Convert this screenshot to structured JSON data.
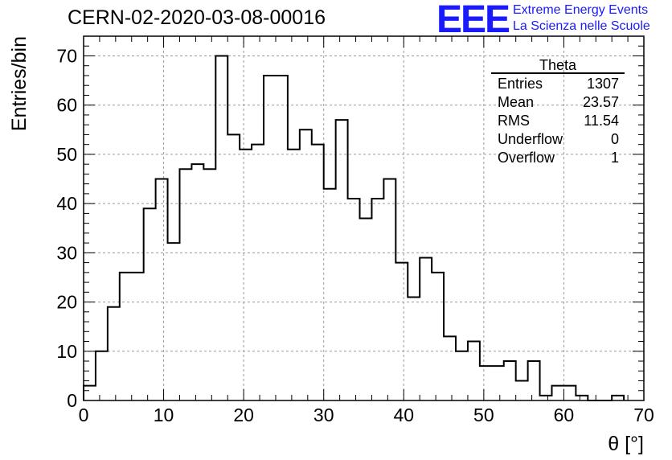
{
  "header": {
    "title": "CERN-02-2020-03-08-00016",
    "logo_mark": "EEE",
    "logo_line1": "Extreme Energy Events",
    "logo_line2": "La Scienza nelle Scuole",
    "logo_color": "#1a1aff"
  },
  "chart_data": {
    "type": "bar",
    "style": "step-histogram",
    "xlabel": "θ [°]",
    "ylabel": "Entries/bin",
    "xlim": [
      0,
      70
    ],
    "ylim": [
      0,
      74
    ],
    "xticks": [
      0,
      10,
      20,
      30,
      40,
      50,
      60,
      70
    ],
    "yticks": [
      0,
      10,
      20,
      30,
      40,
      50,
      60,
      70
    ],
    "grid": true,
    "bin_width": 1.5,
    "values": [
      3,
      10,
      19,
      26,
      26,
      39,
      45,
      32,
      47,
      48,
      47,
      70,
      54,
      51,
      52,
      66,
      66,
      51,
      55,
      52,
      43,
      57,
      41,
      37,
      41,
      45,
      28,
      21,
      29,
      26,
      13,
      10,
      12,
      7,
      7,
      8,
      4,
      8,
      1,
      3,
      3,
      1,
      0,
      0,
      1
    ],
    "stats": {
      "name": "Theta",
      "rows": [
        {
          "label": "Entries",
          "value": "1307"
        },
        {
          "label": "Mean",
          "value": "23.57"
        },
        {
          "label": "RMS",
          "value": "11.54"
        },
        {
          "label": "Underflow",
          "value": "0"
        },
        {
          "label": "Overflow",
          "value": "1"
        }
      ],
      "position": "top-right"
    }
  }
}
